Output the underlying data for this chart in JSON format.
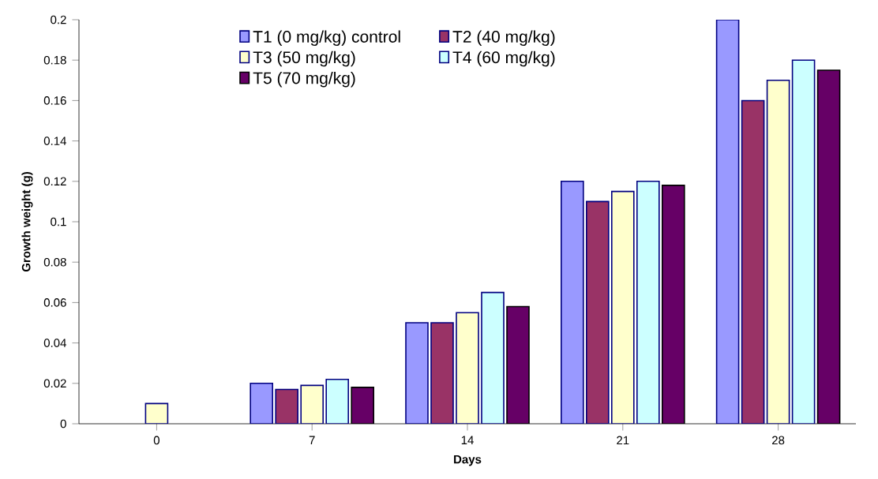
{
  "chart_data": {
    "type": "bar",
    "xlabel": "Days",
    "ylabel": "Growth weight (g)",
    "categories": [
      "0",
      "7",
      "14",
      "21",
      "28"
    ],
    "series": [
      {
        "name": "T1 (0 mg/kg) control",
        "color": "#9999ff",
        "values": [
          null,
          0.02,
          0.05,
          0.12,
          0.2
        ]
      },
      {
        "name": "T2 (40 mg/kg)",
        "color": "#993366",
        "values": [
          null,
          0.017,
          0.05,
          0.11,
          0.16
        ]
      },
      {
        "name": "T3 (50 mg/kg)",
        "color": "#ffffcc",
        "values": [
          0.01,
          0.019,
          0.055,
          0.115,
          0.17
        ]
      },
      {
        "name": "T4 (60 mg/kg)",
        "color": "#ccffff",
        "values": [
          null,
          0.022,
          0.065,
          0.12,
          0.18
        ]
      },
      {
        "name": "T5 (70 mg/kg)",
        "color": "#660066",
        "values": [
          null,
          0.018,
          0.058,
          0.118,
          0.175
        ]
      }
    ],
    "ylim": [
      0,
      0.2
    ],
    "yticks": [
      0,
      0.02,
      0.04,
      0.06,
      0.08,
      0.1,
      0.12,
      0.14,
      0.16,
      0.18,
      0.2
    ],
    "legend": "top left",
    "grid": false
  }
}
